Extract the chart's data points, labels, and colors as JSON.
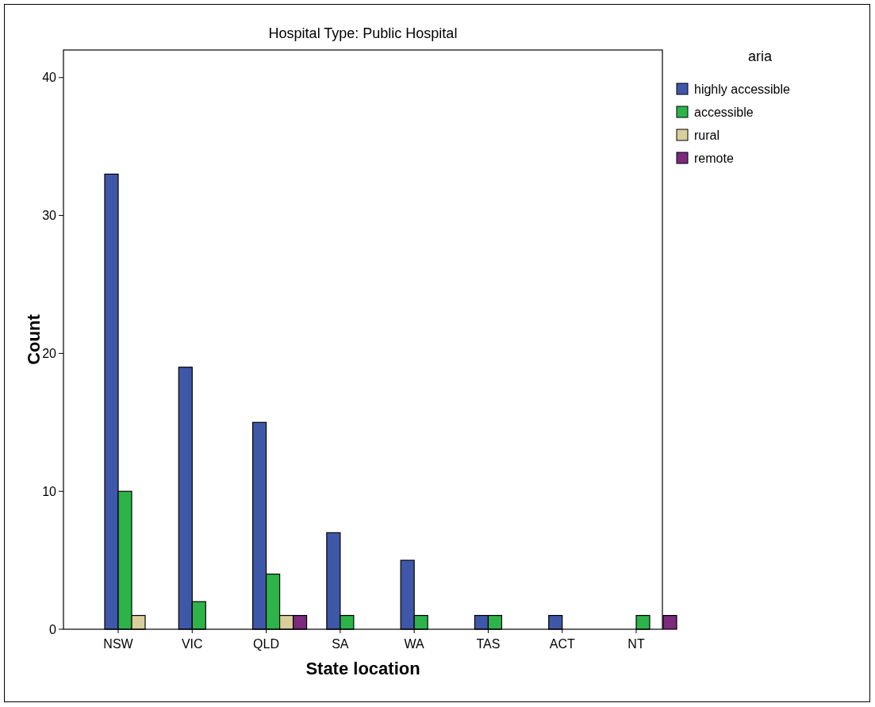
{
  "chart_data": {
    "type": "bar",
    "title": "Hospital Type: Public Hospital",
    "xlabel": "State location",
    "ylabel": "Count",
    "legend_title": "aria",
    "categories": [
      "NSW",
      "VIC",
      "QLD",
      "SA",
      "WA",
      "TAS",
      "ACT",
      "NT"
    ],
    "series": [
      {
        "name": "highly accessible",
        "color": "#3f57a8",
        "values": [
          33,
          19,
          15,
          7,
          5,
          1,
          1,
          0
        ]
      },
      {
        "name": "accessible",
        "color": "#2db34a",
        "values": [
          10,
          2,
          4,
          1,
          1,
          1,
          0,
          1
        ]
      },
      {
        "name": "rural",
        "color": "#d9cf9c",
        "values": [
          1,
          0,
          1,
          0,
          0,
          0,
          0,
          0
        ]
      },
      {
        "name": "remote",
        "color": "#7b2a7e",
        "values": [
          0,
          0,
          1,
          0,
          0,
          0,
          0,
          1
        ]
      }
    ],
    "ylim": [
      0,
      42
    ],
    "yticks": [
      0,
      10,
      20,
      30,
      40
    ],
    "grid": false,
    "legend": "right"
  }
}
